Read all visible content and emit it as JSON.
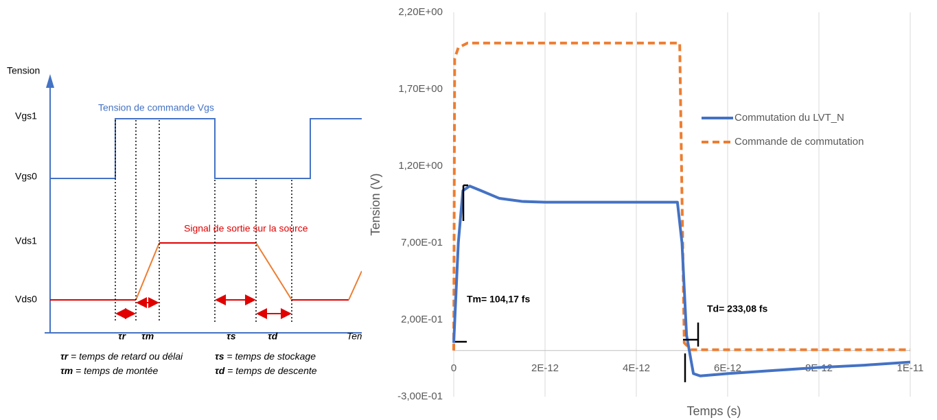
{
  "diagram": {
    "y_axis_label": "Tension",
    "x_axis_label": "Temps",
    "levels": [
      "Vgs1",
      "Vgs0",
      "Vds1",
      "Vds0"
    ],
    "command_label": "Tension de commande Vgs",
    "output_label": "Signal de sortie sur la source",
    "intervals": [
      "τr",
      "τm",
      "τs",
      "τd"
    ],
    "definitions": [
      {
        "symbol": "τr",
        "text": " = temps de retard ou délai"
      },
      {
        "symbol": "τs",
        "text": " = temps de stockage"
      },
      {
        "symbol": "τm",
        "text": " = temps de montée"
      },
      {
        "symbol": "τd",
        "text": " = temps de descente"
      }
    ]
  },
  "chart_data": {
    "type": "line",
    "x_label": "Temps (s)",
    "y_label": "Tension (V)",
    "xlim": [
      0,
      1e-11
    ],
    "ylim": [
      -0.3,
      2.2
    ],
    "xticks": [
      0,
      {
        "value": 2e-12,
        "label": "2E-12"
      },
      {
        "value": 4e-12,
        "label": "4E-12"
      },
      {
        "value": 6e-12,
        "label": "6E-12"
      },
      {
        "value": 8e-12,
        "label": "8E-12"
      },
      {
        "value": 1e-11,
        "label": "1E-11"
      }
    ],
    "yticks": [
      {
        "value": -0.3,
        "label": "-3,00E-01"
      },
      {
        "value": 0.2,
        "label": "2,00E-01"
      },
      {
        "value": 0.7,
        "label": "7,00E-01"
      },
      {
        "value": 1.2,
        "label": "1,20E+00"
      },
      {
        "value": 1.7,
        "label": "1,70E+00"
      },
      {
        "value": 2.2,
        "label": "2,20E+00"
      }
    ],
    "grid": "x",
    "legend": "right",
    "series": [
      {
        "name": "Commutation du LVT_N",
        "color": "#4472c4",
        "line_style": "solid",
        "x": [
          0,
          1e-13,
          2e-13,
          3.5e-13,
          6e-13,
          1e-12,
          1.5e-12,
          2e-12,
          4.9e-12,
          5e-12,
          5.1e-12,
          5.25e-12,
          5.4e-12,
          6e-12,
          7e-12,
          8e-12,
          9e-12,
          1e-11
        ],
        "values": [
          0.05,
          0.7,
          1.04,
          1.07,
          1.04,
          0.99,
          0.97,
          0.965,
          0.965,
          0.7,
          0.1,
          -0.15,
          -0.165,
          -0.15,
          -0.13,
          -0.11,
          -0.095,
          -0.075
        ]
      },
      {
        "name": "Commande de commutation",
        "color": "#ed7d31",
        "line_style": "dashed",
        "x": [
          0,
          2e-14,
          1e-13,
          3e-13,
          4.95e-12,
          5e-12,
          5.05e-12,
          5.2e-12,
          1e-11
        ],
        "values": [
          0,
          1.9,
          1.97,
          2.0,
          2.0,
          1.0,
          0.05,
          0.005,
          0.005
        ]
      }
    ],
    "annotations": [
      "Tm= 104,17 fs",
      "Td= 233,08 fs"
    ]
  }
}
